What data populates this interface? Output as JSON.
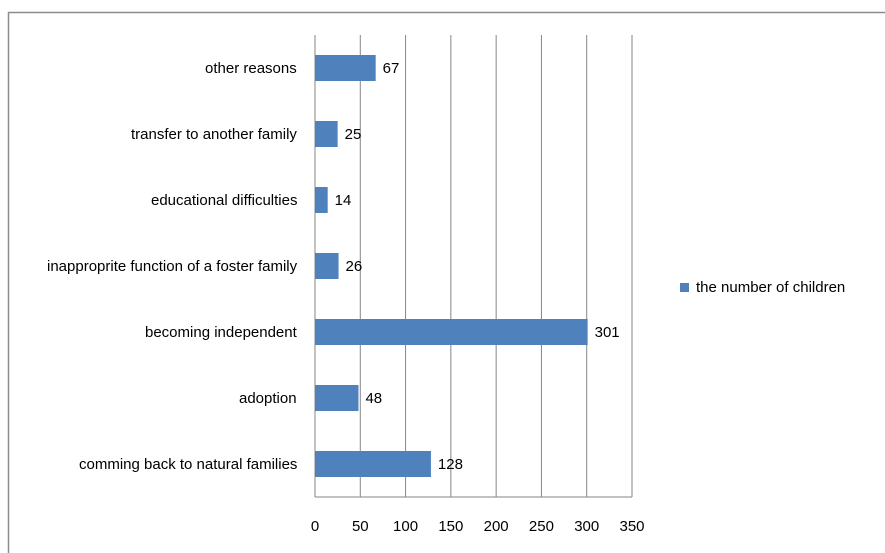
{
  "chart_data": {
    "type": "bar",
    "orientation": "horizontal",
    "categories": [
      "other reasons",
      "transfer to another family",
      "educational difficulties",
      "inappropri­te function of a foster family",
      "becoming independent",
      "adoption",
      "comming back to natural families"
    ],
    "series": [
      {
        "name": "the number of children",
        "color": "#4f81bd",
        "values": [
          67,
          25,
          14,
          26,
          301,
          48,
          128
        ]
      }
    ],
    "xlim": [
      0,
      350
    ],
    "xticks": [
      0,
      50,
      100,
      150,
      200,
      250,
      300,
      350
    ],
    "grid": true,
    "legend": "right"
  }
}
